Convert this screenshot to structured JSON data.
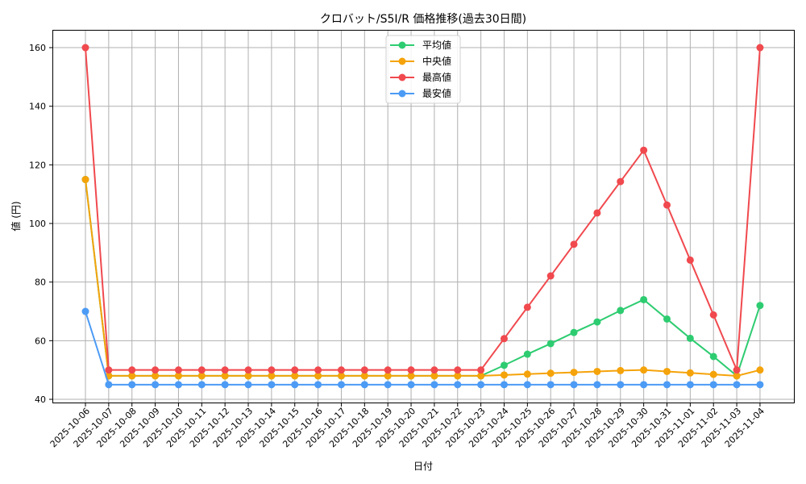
{
  "chart_data": {
    "type": "line",
    "title": "クロバット/S5I/R 価格推移(過去30日間)",
    "xlabel": "日付",
    "ylabel": "値 (円)",
    "ylim": [
      40,
      160
    ],
    "yticks": [
      40,
      60,
      80,
      100,
      120,
      140,
      160
    ],
    "grid": true,
    "legend_position": "upper center",
    "categories": [
      "2025-10-06",
      "2025-10-07",
      "2025-10-08",
      "2025-10-09",
      "2025-10-10",
      "2025-10-11",
      "2025-10-12",
      "2025-10-13",
      "2025-10-14",
      "2025-10-15",
      "2025-10-16",
      "2025-10-17",
      "2025-10-18",
      "2025-10-19",
      "2025-10-20",
      "2025-10-21",
      "2025-10-22",
      "2025-10-23",
      "2025-10-24",
      "2025-10-25",
      "2025-10-26",
      "2025-10-27",
      "2025-10-28",
      "2025-10-29",
      "2025-10-30",
      "2025-10-31",
      "2025-11-01",
      "2025-11-02",
      "2025-11-03",
      "2025-11-04"
    ],
    "series": [
      {
        "name": "平均値",
        "color": "#2ecc71",
        "values": [
          115,
          48,
          48,
          48,
          48,
          48,
          48,
          48,
          48,
          48,
          48,
          48,
          48,
          48,
          48,
          48,
          48,
          48,
          51.6,
          55.4,
          59,
          62.8,
          66.4,
          70.3,
          74,
          67.4,
          60.8,
          54.6,
          48,
          72
        ]
      },
      {
        "name": "中央値",
        "color": "#f5a30a",
        "values": [
          115,
          48,
          48,
          48,
          48,
          48,
          48,
          48,
          48,
          48,
          48,
          48,
          48,
          48,
          48,
          48,
          48,
          48,
          48.3,
          48.6,
          48.9,
          49.2,
          49.5,
          49.8,
          50,
          49.5,
          49,
          48.5,
          48,
          50
        ]
      },
      {
        "name": "最高値",
        "color": "#f0494e",
        "values": [
          160,
          50,
          50,
          50,
          50,
          50,
          50,
          50,
          50,
          50,
          50,
          50,
          50,
          50,
          50,
          50,
          50,
          50,
          60.7,
          71.4,
          82.1,
          92.9,
          103.6,
          114.3,
          125,
          106.3,
          87.5,
          68.8,
          50,
          160
        ]
      },
      {
        "name": "最安値",
        "color": "#4c9bf5",
        "values": [
          70,
          45,
          45,
          45,
          45,
          45,
          45,
          45,
          45,
          45,
          45,
          45,
          45,
          45,
          45,
          45,
          45,
          45,
          45,
          45,
          45,
          45,
          45,
          45,
          45,
          45,
          45,
          45,
          45,
          45
        ]
      }
    ]
  }
}
